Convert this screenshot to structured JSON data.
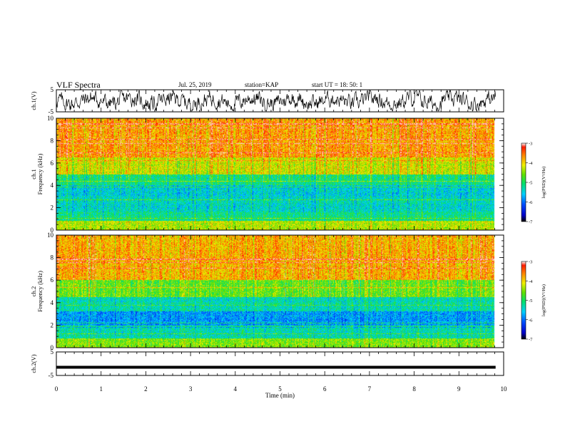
{
  "header": {
    "title": "VLF Spectra",
    "date": "Jul. 25, 2019",
    "station": "station=KAP",
    "start": "start UT =  18: 50: 1"
  },
  "chart_data": [
    {
      "type": "line",
      "panel": "waveform-ch1",
      "ylabel": "ch.1(V)",
      "ylim": [
        -5,
        5
      ],
      "yticks": [
        "5",
        "-5"
      ],
      "xlim": [
        0,
        10
      ],
      "description_values": "noisy broadband signal oscillating roughly between -4 and 4 V over 0–9.8 min"
    },
    {
      "type": "heatmap",
      "panel": "spectrogram-ch1",
      "ylabel": "ch.1\nFrequency (kHz)",
      "ylabel_lines": [
        "ch.1",
        "Frequency (kHz)"
      ],
      "ylim": [
        0,
        10
      ],
      "yticks": [
        "0",
        "2",
        "4",
        "6",
        "8",
        "10"
      ],
      "xlim": [
        0,
        10
      ],
      "data_extent_min": 9.8,
      "colorbar": {
        "label": "log(PSD)(V²/Hz)",
        "range": [
          -7,
          -3
        ],
        "ticks": [
          "-3",
          "-4",
          "-5",
          "-6",
          "-7"
        ]
      },
      "bands": [
        {
          "from_khz": 0.0,
          "to_khz": 0.8,
          "level": -4.3
        },
        {
          "from_khz": 0.8,
          "to_khz": 1.6,
          "level": -5.2
        },
        {
          "from_khz": 1.6,
          "to_khz": 3.0,
          "level": -5.4
        },
        {
          "from_khz": 3.0,
          "to_khz": 4.0,
          "level": -5.5
        },
        {
          "from_khz": 4.0,
          "to_khz": 5.0,
          "level": -5.1
        },
        {
          "from_khz": 5.0,
          "to_khz": 6.5,
          "level": -4.2
        },
        {
          "from_khz": 6.5,
          "to_khz": 10.0,
          "level": -3.7
        }
      ]
    },
    {
      "type": "heatmap",
      "panel": "spectrogram-ch2",
      "ylabel": "ch.2\nFrequency (kHz)",
      "ylabel_lines": [
        "ch.2",
        "Frequency (kHz)"
      ],
      "ylim": [
        0,
        10
      ],
      "yticks": [
        "0",
        "2",
        "4",
        "6",
        "8",
        "10"
      ],
      "xlim": [
        0,
        10
      ],
      "data_extent_min": 9.8,
      "colorbar": {
        "label": "log(PSD)(V²/Hz)",
        "range": [
          -7,
          -3
        ],
        "ticks": [
          "-3",
          "-4",
          "-5",
          "-6",
          "-7"
        ]
      },
      "bands": [
        {
          "from_khz": 0.0,
          "to_khz": 0.8,
          "level": -4.5
        },
        {
          "from_khz": 0.8,
          "to_khz": 1.8,
          "level": -5.3
        },
        {
          "from_khz": 1.8,
          "to_khz": 3.2,
          "level": -5.8
        },
        {
          "from_khz": 3.2,
          "to_khz": 4.5,
          "level": -5.3
        },
        {
          "from_khz": 4.5,
          "to_khz": 6.0,
          "level": -4.6
        },
        {
          "from_khz": 6.0,
          "to_khz": 10.0,
          "level": -3.8
        }
      ]
    },
    {
      "type": "line",
      "panel": "waveform-ch2",
      "ylabel": "ch.2(V)",
      "ylim": [
        -5,
        5
      ],
      "yticks": [
        "5",
        "-5"
      ],
      "xlim": [
        0,
        10
      ],
      "xlabel": "Time (min)",
      "xticks": [
        "0",
        "1",
        "2",
        "3",
        "4",
        "5",
        "6",
        "7",
        "8",
        "9",
        "10"
      ],
      "constant_value": -1.5
    }
  ]
}
